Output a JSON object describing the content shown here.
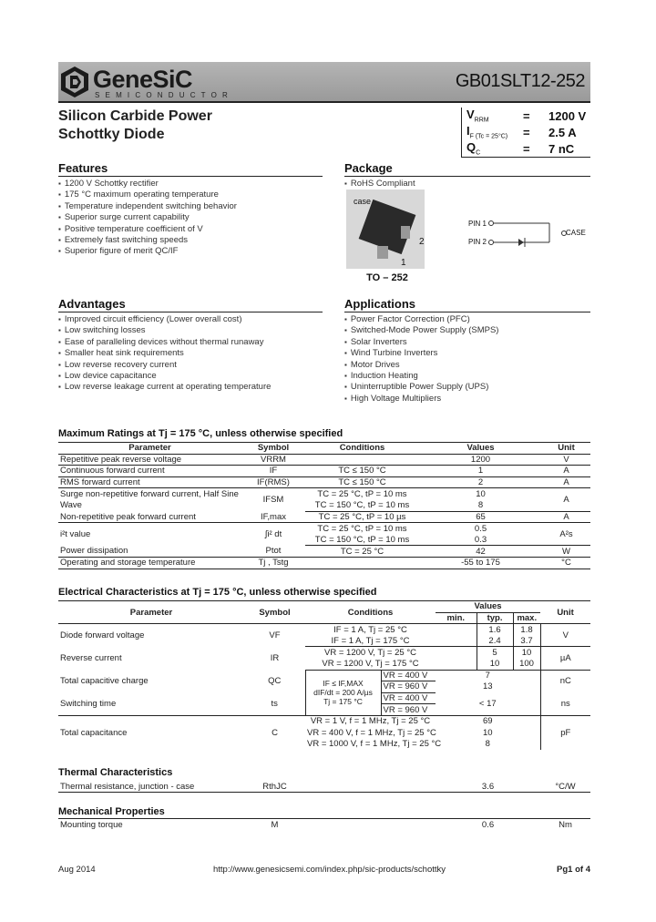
{
  "header": {
    "brand": "GeneSiC",
    "brand_sub": "SEMICONDUCTOR",
    "part_number": "GB01SLT12-252"
  },
  "title": {
    "line1": "Silicon Carbide Power",
    "line2": "Schottky Diode"
  },
  "key_specs": [
    {
      "symbol": "V",
      "sub": "RRM",
      "eq": "=",
      "value": "1200 V"
    },
    {
      "symbol": "I",
      "sub": "F (Tc = 25°C)",
      "eq": "=",
      "value": "2.5 A"
    },
    {
      "symbol": "Q",
      "sub": "C",
      "eq": "=",
      "value": "7 nC"
    }
  ],
  "features": {
    "title": "Features",
    "items": [
      "1200 V Schottky rectifier",
      "175 °C maximum operating temperature",
      "Temperature independent switching behavior",
      "Superior surge current capability",
      "Positive temperature coefficient of V",
      "Extremely fast switching speeds",
      "Superior figure of merit QC/IF"
    ]
  },
  "package": {
    "title": "Package",
    "items": [
      "RoHS Compliant"
    ],
    "case_label": "case",
    "pin1": "1",
    "pin2": "2",
    "name": "TO – 252",
    "diagram": {
      "pin1": "PIN 1",
      "pin2": "PIN 2",
      "case": "CASE"
    }
  },
  "advantages": {
    "title": "Advantages",
    "items": [
      "Improved circuit efficiency (Lower overall cost)",
      "Low switching losses",
      "Ease of paralleling devices without thermal runaway",
      "Smaller heat sink requirements",
      "Low reverse recovery current",
      "Low device capacitance",
      "Low reverse leakage current at operating temperature"
    ]
  },
  "applications": {
    "title": "Applications",
    "items": [
      "Power Factor Correction (PFC)",
      "Switched-Mode Power Supply (SMPS)",
      "Solar Inverters",
      "Wind Turbine Inverters",
      "Motor Drives",
      "Induction Heating",
      "Uninterruptible Power Supply (UPS)",
      "High Voltage Multipliers"
    ]
  },
  "max_ratings": {
    "title": "Maximum Ratings at Tj = 175 °C, unless otherwise specified",
    "headers": [
      "Parameter",
      "Symbol",
      "Conditions",
      "Values",
      "Unit"
    ],
    "rows": [
      {
        "param": "Repetitive peak reverse voltage",
        "symbol": "VRRM",
        "cond": [
          ""
        ],
        "val": [
          "1200"
        ],
        "unit": "V"
      },
      {
        "param": "Continuous forward current",
        "symbol": "IF",
        "cond": [
          "TC ≤ 150 °C"
        ],
        "val": [
          "1"
        ],
        "unit": "A"
      },
      {
        "param": "RMS forward current",
        "symbol": "IF(RMS)",
        "cond": [
          "TC ≤ 150 °C"
        ],
        "val": [
          "2"
        ],
        "unit": "A"
      },
      {
        "param": "Surge non-repetitive forward current, Half Sine Wave",
        "symbol": "IFSM",
        "cond": [
          "TC = 25 °C, tP = 10 ms",
          "TC = 150 °C, tP = 10 ms"
        ],
        "val": [
          "10",
          "8"
        ],
        "unit": "A"
      },
      {
        "param": "Non-repetitive peak forward current",
        "symbol": "IF,max",
        "cond": [
          "TC = 25 °C, tP = 10 µs"
        ],
        "val": [
          "65"
        ],
        "unit": "A"
      },
      {
        "param": "i²t value",
        "symbol": "∫i² dt",
        "cond": [
          "TC = 25 °C, tP = 10 ms",
          "TC = 150 °C, tP = 10 ms"
        ],
        "val": [
          "0.5",
          "0.3"
        ],
        "unit": "A²s"
      },
      {
        "param": "Power dissipation",
        "symbol": "Ptot",
        "cond": [
          "TC = 25 °C"
        ],
        "val": [
          "42"
        ],
        "unit": "W"
      },
      {
        "param": "Operating and storage temperature",
        "symbol": "Tj , Tstg",
        "cond": [
          ""
        ],
        "val": [
          "-55 to 175"
        ],
        "unit": "°C"
      }
    ]
  },
  "electrical": {
    "title": "Electrical Characteristics at Tj = 175 °C, unless otherwise specified",
    "headers": {
      "param": "Parameter",
      "symbol": "Symbol",
      "cond": "Conditions",
      "values": "Values",
      "min": "min.",
      "typ": "typ.",
      "max": "max.",
      "unit": "Unit"
    },
    "vf": {
      "param": "Diode forward voltage",
      "symbol": "VF",
      "cond": [
        "IF = 1 A, Tj = 25 °C",
        "IF = 1 A, Tj = 175 °C"
      ],
      "typ": [
        "1.6",
        "2.4"
      ],
      "max": [
        "1.8",
        "3.7"
      ],
      "unit": "V"
    },
    "ir": {
      "param": "Reverse current",
      "symbol": "IR",
      "cond": [
        "VR = 1200 V, Tj = 25 °C",
        "VR = 1200 V, Tj = 175 °C"
      ],
      "typ": [
        "5",
        "10"
      ],
      "max": [
        "10",
        "100"
      ],
      "unit": "µA"
    },
    "shared_cond": [
      "IF ≤ IF,MAX",
      "dIF/dt = 200 A/µs",
      "Tj = 175 °C"
    ],
    "qc": {
      "param": "Total capacitive charge",
      "symbol": "QC",
      "cond": [
        "VR = 400 V",
        "VR = 960 V"
      ],
      "typ": [
        "7",
        "13"
      ],
      "unit": "nC"
    },
    "ts": {
      "param": "Switching time",
      "symbol": "ts",
      "cond": [
        "VR = 400 V",
        "VR = 960 V"
      ],
      "typ": "< 17",
      "unit": "ns"
    },
    "c": {
      "param": "Total capacitance",
      "symbol": "C",
      "cond": [
        "VR = 1 V, f = 1 MHz, Tj = 25 °C",
        "VR = 400 V, f = 1 MHz, Tj = 25 °C",
        "VR = 1000 V, f = 1 MHz, Tj = 25 °C"
      ],
      "typ": [
        "69",
        "10",
        "8"
      ],
      "unit": "pF"
    }
  },
  "thermal": {
    "title": "Thermal Characteristics",
    "param": "Thermal resistance, junction - case",
    "symbol": "RthJC",
    "value": "3.6",
    "unit": "°C/W"
  },
  "mechanical": {
    "title": "Mechanical Properties",
    "param": "Mounting torque",
    "symbol": "M",
    "value": "0.6",
    "unit": "Nm"
  },
  "footer": {
    "date": "Aug 2014",
    "url": "http://www.genesicsemi.com/index.php/sic-products/schottky",
    "page": "Pg1 of 4"
  }
}
